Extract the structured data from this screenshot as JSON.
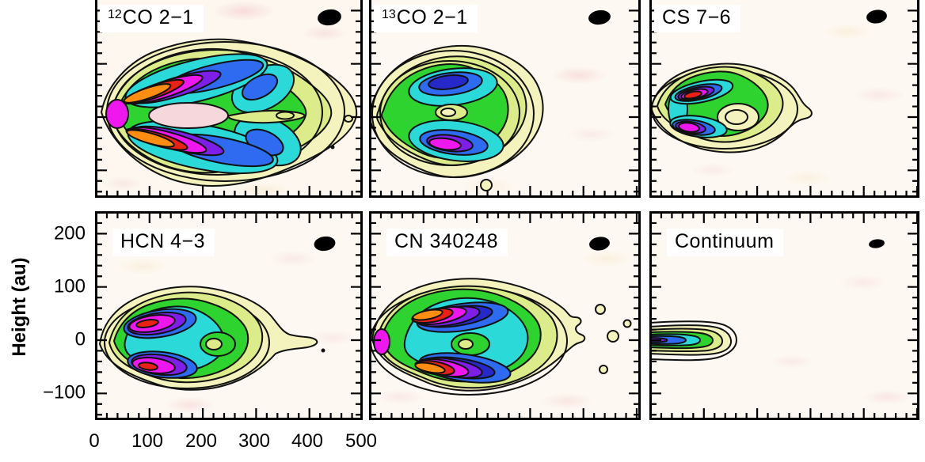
{
  "figure": {
    "ylabel": "Height (au)",
    "x_ticks": [
      "0",
      "100",
      "200",
      "300",
      "400",
      "500"
    ],
    "y_ticks": [
      "200",
      "100",
      "0",
      "−100"
    ]
  },
  "panels": [
    {
      "sup": "12",
      "label": "CO 2−1"
    },
    {
      "sup": "13",
      "label": "CO 2−1"
    },
    {
      "sup": "",
      "label": "CS 7−6"
    },
    {
      "sup": "",
      "label": "HCN 4−3"
    },
    {
      "sup": "",
      "label": "CN 340248"
    },
    {
      "sup": "",
      "label": "Continuum"
    }
  ],
  "chart_data": {
    "type": "heatmap",
    "variant": "2x3 grid of filled-contour emission maps with black contour lines, shared axes",
    "x_axis": {
      "ticks_au": [
        0,
        100,
        200,
        300,
        400,
        500
      ],
      "minor_tick_step_au": 20,
      "tick_labels_shown": "below bottom-left panel only",
      "axis_title_visible": false
    },
    "y_axis": {
      "label": "Height (au)",
      "ticks_au": [
        200,
        100,
        0,
        -100
      ],
      "minor_tick_step_au": 20,
      "visible_range_au_bottom_row": [
        -150,
        245
      ],
      "top_row_cropped_at_top": true,
      "tick_labels_shown": "left of bottom-left panel only"
    },
    "contour_palette_low_to_high": [
      "#f4f2bd",
      "#dcec8a",
      "#2fd32f",
      "#2bd9d9",
      "#2e6bf0",
      "#2628c8",
      "#7d1fe8",
      "#ee17ee",
      "#e92117",
      "#ff8d12"
    ],
    "background": "cream with faint pink and pale-yellow noise speckle",
    "contour_line_color": "#111111",
    "beam": "filled black ellipse drawn at top-right of every panel; continuum beam is smallest",
    "panels": [
      {
        "row": 1,
        "col": 1,
        "label": "12CO 2-1",
        "morphology": "Brightest, most extended map. Two V-shaped emission surfaces open to the right from a vertex near x=0, height=0. Orange/red peaks along both arms at x~30-130 au, heights about ±40 au; magenta/purple sheaths; blue/cyan lobes extend to ~300 au at heights ±60 au; green body and pale-yellow halo out to ~480 au. Pale pink low-intensity midplane gap at x~80-170 au."
      },
      {
        "row": 1,
        "col": 2,
        "label": "13CO 2-1",
        "morphology": "Compact double-lobed wedge extending to ~300 au. Upper lobe peaks dark navy blue, lower lobe peaks magenta at x~100-160 au, heights about ±55 au; cyan rings, green body, yellow halo; small low-intensity hole at the center between the lobes."
      },
      {
        "row": 1,
        "col": 3,
        "label": "CS 7-6",
        "morphology": "Most compact map of top row, extending to ~270 au. Two tight peaks (red above, magenta below) at x~60-90 au close to the midplane (|height| < 35 au); blue/cyan rings; green C-shape wrapping a pale interior hole to the right of the peaks; ragged yellow halo."
      },
      {
        "row": 2,
        "col": 1,
        "label": "HCN 4-3",
        "morphology": "Oval distribution to ~350 au with a faint yellow tail reaching ~420 au. Two magenta peaks with red cores at x~90-120 au, heights about ±40 au; purple/blue rings, cyan interior, green body with a small low-intensity spot near x~230 au at the midplane; yellow halo."
      },
      {
        "row": 2,
        "col": 2,
        "label": "CN 340248",
        "morphology": "Extended oval to ~400 au with ragged yellow halo and detached specks out to ~500 au. Two elongated orange peaks at x~60-160 au, heights about ±50 au, wrapped in red, magenta and purple; blue arcs and cyan interior; small green low spot between the arms near the center."
      },
      {
        "row": 2,
        "col": 3,
        "label": "Continuum",
        "morphology": "Very thin flat strip confined to the midplane, from x=0 to ~150 au, |height| < 25 au; purple core at smallest x grading through blue, cyan and green to a yellow tip; only a few contour levels."
      }
    ]
  }
}
